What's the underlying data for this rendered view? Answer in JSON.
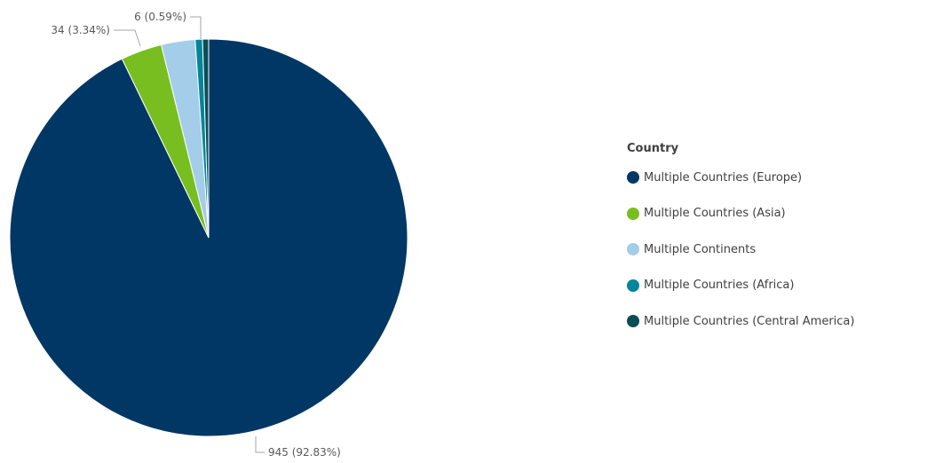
{
  "chart_data": {
    "type": "pie",
    "legend_title": "Country",
    "legend_position": "right",
    "slices": [
      {
        "name": "Multiple Countries (Europe)",
        "value": 945,
        "percent": 92.83,
        "label": "945 (92.83%)",
        "color": "#003764"
      },
      {
        "name": "Multiple Countries (Asia)",
        "value": 34,
        "percent": 3.34,
        "label": "34 (3.34%)",
        "color": "#78be20"
      },
      {
        "name": "Multiple Continents",
        "value": 28,
        "percent": 2.75,
        "label": "",
        "color": "#a3cde8"
      },
      {
        "name": "Multiple Countries (Africa)",
        "value": 6,
        "percent": 0.59,
        "label": "6 (0.59%)",
        "color": "#00859b"
      },
      {
        "name": "Multiple Countries (Central America)",
        "value": 5,
        "percent": 0.49,
        "label": "",
        "color": "#0a4d55"
      }
    ]
  }
}
